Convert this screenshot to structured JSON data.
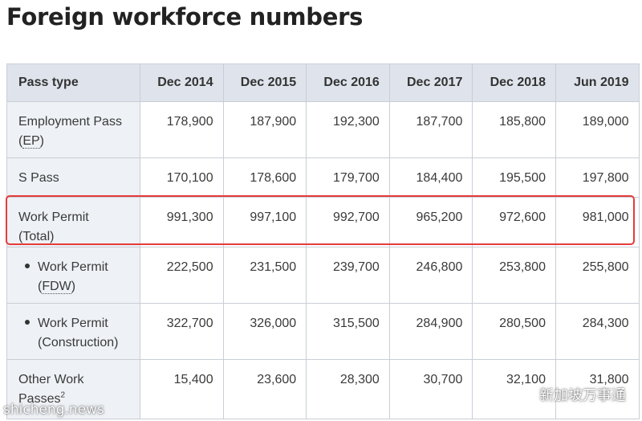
{
  "page": {
    "title": "Foreign workforce numbers"
  },
  "table": {
    "headers": [
      "Pass type",
      "Dec 2014",
      "Dec 2015",
      "Dec 2016",
      "Dec 2017",
      "Dec 2018",
      "Jun 2019"
    ],
    "rows": [
      {
        "label": "Employment Pass",
        "abbr": "EP",
        "values": [
          "178,900",
          "187,900",
          "192,300",
          "187,700",
          "185,800",
          "189,000"
        ]
      },
      {
        "label": "S Pass",
        "values": [
          "170,100",
          "178,600",
          "179,700",
          "184,400",
          "195,500",
          "197,800"
        ]
      },
      {
        "label": "Work Permit",
        "label_line2": "(Total)",
        "highlighted": true,
        "values": [
          "991,300",
          "997,100",
          "992,700",
          "965,200",
          "972,600",
          "981,000"
        ]
      },
      {
        "label": "Work Permit",
        "abbr": "FDW",
        "bullet": true,
        "values": [
          "222,500",
          "231,500",
          "239,700",
          "246,800",
          "253,800",
          "255,800"
        ]
      },
      {
        "label": "Work Permit",
        "label_line2": "(Construction)",
        "bullet": true,
        "values": [
          "322,700",
          "326,000",
          "315,500",
          "284,900",
          "280,500",
          "284,300"
        ]
      },
      {
        "label": "Other Work",
        "label_line2": "Passes",
        "footnote": "2",
        "values": [
          "15,400",
          "23,600",
          "28,300",
          "30,700",
          "32,100",
          "31,800"
        ]
      }
    ]
  },
  "highlight_color": "#e53b3b",
  "header_bg": "#dfe4ec",
  "watermark": {
    "left": "shicheng.news",
    "right": "新加坡万事通",
    "icon": "wechat-icon"
  }
}
